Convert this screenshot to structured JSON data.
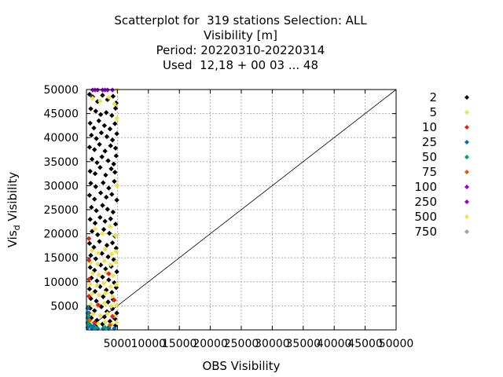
{
  "chart_data": {
    "type": "scatter",
    "title_lines": [
      "Scatterplot for  319 stations Selection: ALL",
      "Visibility [m]",
      "Period: 20220310-20220314",
      "Used  12,18 + 00 03 ... 48"
    ],
    "xlabel": "OBS Visibility",
    "ylabel": "Vis",
    "ylabel_sub": "d",
    "ylabel_rest": " Visibility",
    "xlim": [
      0,
      50000
    ],
    "ylim": [
      0,
      50000
    ],
    "x_ticks": [
      "5000",
      "10000",
      "15000",
      "20000",
      "25000",
      "30000",
      "35000",
      "40000",
      "45000",
      "50000"
    ],
    "x_tick_values": [
      5000,
      10000,
      15000,
      20000,
      25000,
      30000,
      35000,
      40000,
      45000,
      50000
    ],
    "y_ticks": [
      "5000",
      "10000",
      "15000",
      "20000",
      "25000",
      "30000",
      "35000",
      "40000",
      "45000",
      "50000"
    ],
    "y_tick_values": [
      5000,
      10000,
      15000,
      20000,
      25000,
      30000,
      35000,
      40000,
      45000,
      50000
    ],
    "grid": true,
    "legend_position": "right",
    "diagonal": true,
    "legend": [
      {
        "label": "2",
        "color": "#000000"
      },
      {
        "label": "5",
        "color": "#f0e442"
      },
      {
        "label": "10",
        "color": "#e51e10"
      },
      {
        "label": "25",
        "color": "#0072b2"
      },
      {
        "label": "50",
        "color": "#009e73"
      },
      {
        "label": "75",
        "color": "#d55e00"
      },
      {
        "label": "100",
        "color": "#9400d3"
      },
      {
        "label": "250",
        "color": "#9400d3"
      },
      {
        "label": "500",
        "color": "#f0e442"
      },
      {
        "label": "750",
        "color": "#a0a0a0"
      }
    ],
    "series": [
      {
        "name": "2",
        "color": "#000000",
        "points": [
          [
            500,
            49000
          ],
          [
            1000,
            48500
          ],
          [
            1800,
            47500
          ],
          [
            2600,
            48800
          ],
          [
            3400,
            47900
          ],
          [
            4300,
            48600
          ],
          [
            4800,
            47200
          ],
          [
            700,
            46000
          ],
          [
            1500,
            45500
          ],
          [
            2300,
            44800
          ],
          [
            3200,
            45200
          ],
          [
            4100,
            44600
          ],
          [
            4700,
            46100
          ],
          [
            600,
            43000
          ],
          [
            1200,
            42000
          ],
          [
            2000,
            43500
          ],
          [
            2900,
            42500
          ],
          [
            3800,
            41800
          ],
          [
            4600,
            42900
          ],
          [
            800,
            40500
          ],
          [
            1600,
            39800
          ],
          [
            2400,
            41000
          ],
          [
            3300,
            40200
          ],
          [
            4200,
            39500
          ],
          [
            4900,
            40800
          ],
          [
            500,
            38000
          ],
          [
            1300,
            37500
          ],
          [
            2100,
            38600
          ],
          [
            3000,
            37200
          ],
          [
            3900,
            38300
          ],
          [
            4700,
            37800
          ],
          [
            900,
            35500
          ],
          [
            1700,
            34800
          ],
          [
            2500,
            36000
          ],
          [
            3500,
            35200
          ],
          [
            4400,
            34500
          ],
          [
            4800,
            36200
          ],
          [
            600,
            33000
          ],
          [
            1400,
            32500
          ],
          [
            2200,
            33800
          ],
          [
            3100,
            32200
          ],
          [
            4000,
            33500
          ],
          [
            4600,
            32800
          ],
          [
            700,
            30500
          ],
          [
            1500,
            29800
          ],
          [
            2700,
            30600
          ],
          [
            3600,
            29500
          ],
          [
            4500,
            30900
          ],
          [
            500,
            28000
          ],
          [
            1300,
            27200
          ],
          [
            2300,
            28500
          ],
          [
            3200,
            27600
          ],
          [
            4100,
            28200
          ],
          [
            4900,
            27000
          ],
          [
            800,
            25500
          ],
          [
            1600,
            24800
          ],
          [
            2600,
            25900
          ],
          [
            3400,
            25100
          ],
          [
            4300,
            24500
          ],
          [
            600,
            23000
          ],
          [
            1400,
            22200
          ],
          [
            2200,
            23400
          ],
          [
            3000,
            22600
          ],
          [
            3900,
            23100
          ],
          [
            4700,
            22000
          ],
          [
            900,
            20500
          ],
          [
            1800,
            19800
          ],
          [
            2800,
            20900
          ],
          [
            3700,
            20100
          ],
          [
            4600,
            19500
          ],
          [
            500,
            18000
          ],
          [
            1200,
            17200
          ],
          [
            2100,
            18400
          ],
          [
            3300,
            17600
          ],
          [
            4200,
            18100
          ],
          [
            4800,
            17000
          ],
          [
            700,
            15500
          ],
          [
            1500,
            14800
          ],
          [
            2500,
            15900
          ],
          [
            3500,
            15200
          ],
          [
            4400,
            14600
          ],
          [
            600,
            13000
          ],
          [
            1300,
            12400
          ],
          [
            2300,
            13500
          ],
          [
            3100,
            12700
          ],
          [
            4000,
            13200
          ],
          [
            4900,
            12100
          ],
          [
            800,
            10800
          ],
          [
            1700,
            10200
          ],
          [
            2600,
            11000
          ],
          [
            3600,
            10400
          ],
          [
            4500,
            9800
          ],
          [
            500,
            8500
          ],
          [
            1400,
            8000
          ],
          [
            2200,
            9000
          ],
          [
            3200,
            8300
          ],
          [
            4100,
            7800
          ],
          [
            4800,
            8800
          ],
          [
            700,
            6500
          ],
          [
            1600,
            6000
          ],
          [
            2700,
            6900
          ],
          [
            3500,
            5800
          ],
          [
            4300,
            6300
          ],
          [
            600,
            4500
          ],
          [
            1300,
            4000
          ],
          [
            2400,
            4800
          ],
          [
            3300,
            3800
          ],
          [
            4200,
            4400
          ],
          [
            4900,
            3500
          ],
          [
            800,
            2500
          ],
          [
            1700,
            2000
          ],
          [
            2900,
            2700
          ],
          [
            3800,
            1800
          ],
          [
            4600,
            2300
          ],
          [
            500,
            1000
          ],
          [
            1500,
            700
          ],
          [
            2600,
            1200
          ],
          [
            3600,
            500
          ],
          [
            4700,
            900
          ]
        ]
      },
      {
        "name": "5",
        "color": "#f0e442",
        "points": [
          [
            1000,
            48200
          ],
          [
            2200,
            47600
          ],
          [
            3600,
            48400
          ],
          [
            4500,
            47000
          ],
          [
            1400,
            21000
          ],
          [
            2600,
            20000
          ],
          [
            3800,
            21500
          ],
          [
            4700,
            19600
          ],
          [
            900,
            16500
          ],
          [
            1900,
            16000
          ],
          [
            3000,
            16800
          ],
          [
            4100,
            15800
          ],
          [
            4800,
            16300
          ],
          [
            700,
            14000
          ],
          [
            1800,
            13700
          ],
          [
            2900,
            14300
          ],
          [
            3900,
            13600
          ],
          [
            4700,
            14100
          ],
          [
            1000,
            11800
          ],
          [
            2000,
            11500
          ],
          [
            3200,
            11900
          ],
          [
            4300,
            11300
          ],
          [
            600,
            9500
          ],
          [
            1700,
            9200
          ],
          [
            2800,
            9700
          ],
          [
            3900,
            9000
          ],
          [
            4800,
            9400
          ],
          [
            900,
            7500
          ],
          [
            2000,
            7200
          ],
          [
            3100,
            7600
          ],
          [
            4200,
            7000
          ],
          [
            700,
            5300
          ],
          [
            1800,
            5000
          ],
          [
            2900,
            5500
          ],
          [
            4000,
            4900
          ],
          [
            4800,
            5200
          ],
          [
            1100,
            3300
          ],
          [
            2200,
            3000
          ],
          [
            3400,
            3400
          ],
          [
            4500,
            2900
          ],
          [
            800,
            1500
          ],
          [
            1900,
            1300
          ],
          [
            3000,
            1600
          ],
          [
            4100,
            1200
          ],
          [
            4900,
            1500
          ]
        ]
      },
      {
        "name": "10",
        "color": "#e51e10",
        "points": [
          [
            400,
            19000
          ],
          [
            400,
            14500
          ],
          [
            400,
            10500
          ],
          [
            400,
            7000
          ],
          [
            400,
            3500
          ],
          [
            4500,
            6200
          ],
          [
            4200,
            2800
          ],
          [
            1900,
            5200
          ],
          [
            1300,
            1500
          ],
          [
            3600,
            11700
          ]
        ]
      },
      {
        "name": "25",
        "color": "#0072b2",
        "points": [
          [
            200,
            4500
          ],
          [
            200,
            3500
          ],
          [
            200,
            2500
          ],
          [
            200,
            1500
          ],
          [
            200,
            500
          ],
          [
            900,
            300
          ],
          [
            1800,
            300
          ],
          [
            2700,
            300
          ],
          [
            3600,
            300
          ],
          [
            4500,
            300
          ],
          [
            600,
            1000
          ],
          [
            1200,
            800
          ]
        ]
      },
      {
        "name": "50",
        "color": "#009e73",
        "points": [
          [
            300,
            3000
          ],
          [
            300,
            1200
          ],
          [
            1500,
            400
          ],
          [
            3000,
            500
          ]
        ]
      },
      {
        "name": "75",
        "color": "#d55e00",
        "points": [
          [
            500,
            2000
          ],
          [
            3800,
            1000
          ]
        ]
      },
      {
        "name": "100",
        "color": "#9400d3",
        "points": [
          [
            1000,
            49900
          ],
          [
            1800,
            49900
          ],
          [
            2600,
            49900
          ],
          [
            3400,
            49900
          ],
          [
            4200,
            49900
          ]
        ]
      },
      {
        "name": "250",
        "color": "#9400d3",
        "points": [
          [
            1400,
            49900
          ],
          [
            3000,
            49900
          ]
        ]
      },
      {
        "name": "500",
        "color": "#f0e442",
        "points": [
          [
            4900,
            49900
          ],
          [
            4900,
            44000
          ],
          [
            4900,
            30000
          ]
        ]
      },
      {
        "name": "750",
        "color": "#a0a0a0",
        "points": []
      }
    ]
  }
}
